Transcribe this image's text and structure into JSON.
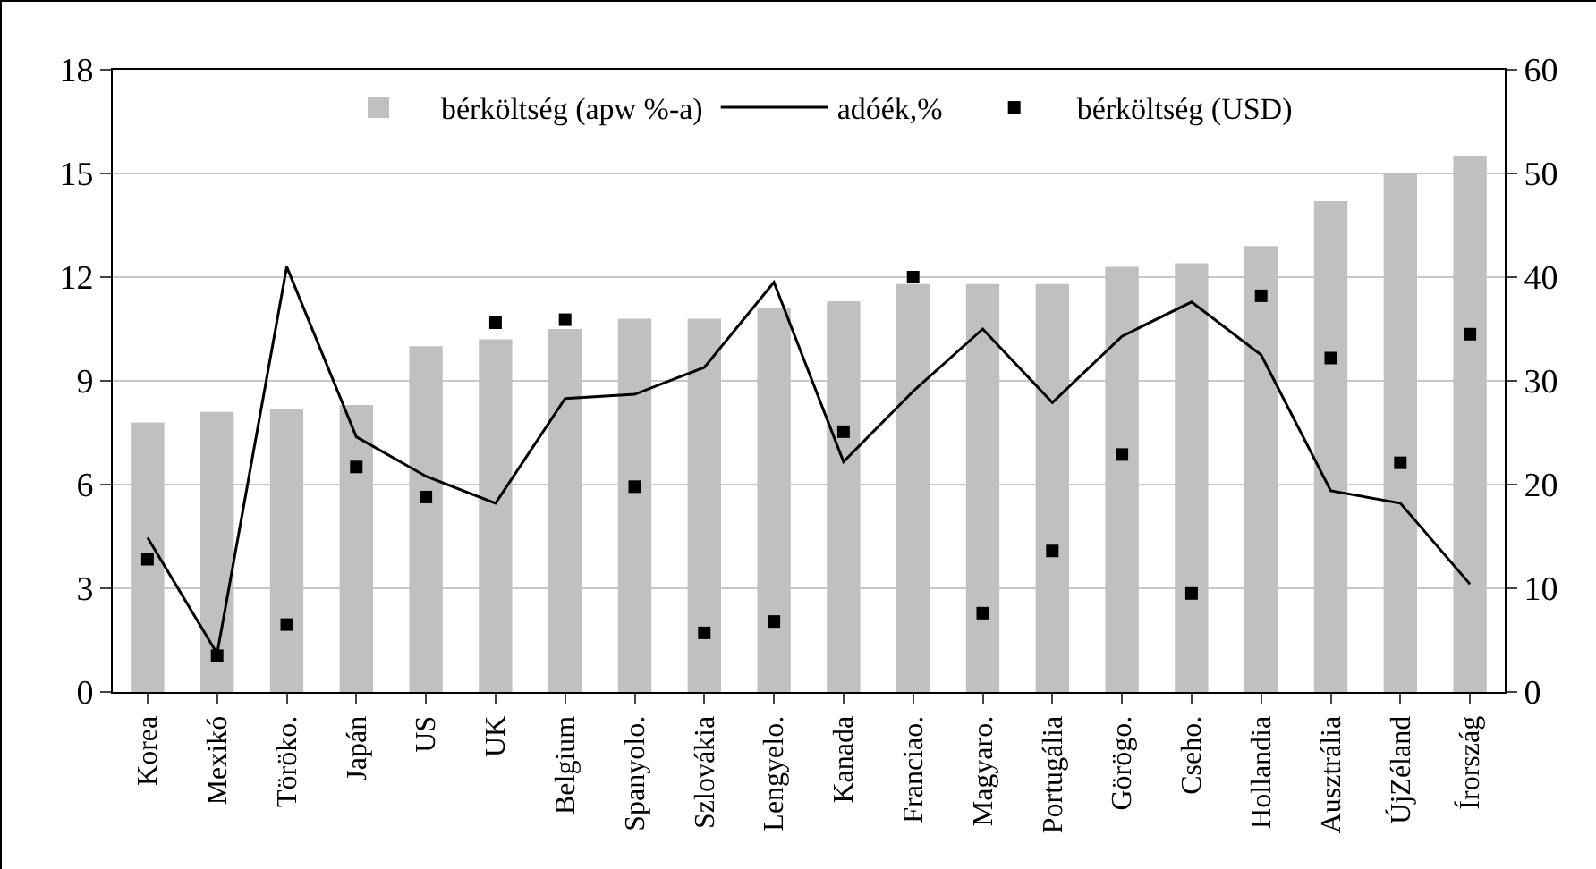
{
  "chart_data": {
    "type": "bar",
    "categories": [
      "Korea",
      "Mexikó",
      "Töröko.",
      "Japán",
      "US",
      "UK",
      "Belgium",
      "Spanyolo.",
      "Szlovákia",
      "Lengyelo.",
      "Kanada",
      "Franciao.",
      "Magyaro.",
      "Portugália",
      "Görögo.",
      "Cseho.",
      "Hollandia",
      "Ausztrália",
      "ÚjZéland",
      "Írország"
    ],
    "series": [
      {
        "name": "bérköltség (apw %-a)",
        "color": "#c0c0c0",
        "values": [
          7.8,
          8.1,
          8.2,
          8.3,
          10.0,
          10.2,
          10.5,
          10.8,
          10.8,
          11.1,
          11.3,
          11.8,
          11.8,
          11.8,
          12.3,
          12.4,
          12.9,
          14.2,
          15.0,
          15.5
        ]
      },
      {
        "name": "adóék,%",
        "type": "line",
        "axis": "y2",
        "color": "#000000",
        "marker": "none",
        "line_style": "solid",
        "values": [
          14.9,
          3.7,
          41.0,
          24.6,
          20.8,
          18.2,
          28.3,
          28.7,
          31.3,
          39.5,
          22.2,
          29.0,
          35.0,
          27.9,
          34.3,
          37.6,
          32.5,
          19.4,
          18.2,
          10.4
        ]
      },
      {
        "name": "bérköltség (USD)",
        "type": "scatter",
        "axis": "y2",
        "color": "#000000",
        "marker": "square",
        "values": [
          12.8,
          3.5,
          6.5,
          21.7,
          18.8,
          35.6,
          35.9,
          19.8,
          5.7,
          6.8,
          25.1,
          40.0,
          7.6,
          13.6,
          22.9,
          9.5,
          38.2,
          32.2,
          22.1,
          34.5
        ]
      }
    ],
    "ylim": [
      0,
      18
    ],
    "yticks": [
      0,
      3,
      6,
      9,
      12,
      15,
      18
    ],
    "y2lim": [
      0,
      60
    ],
    "y2ticks": [
      0,
      10,
      20,
      30,
      40,
      50,
      60
    ],
    "grid": "y",
    "legend": "top"
  }
}
